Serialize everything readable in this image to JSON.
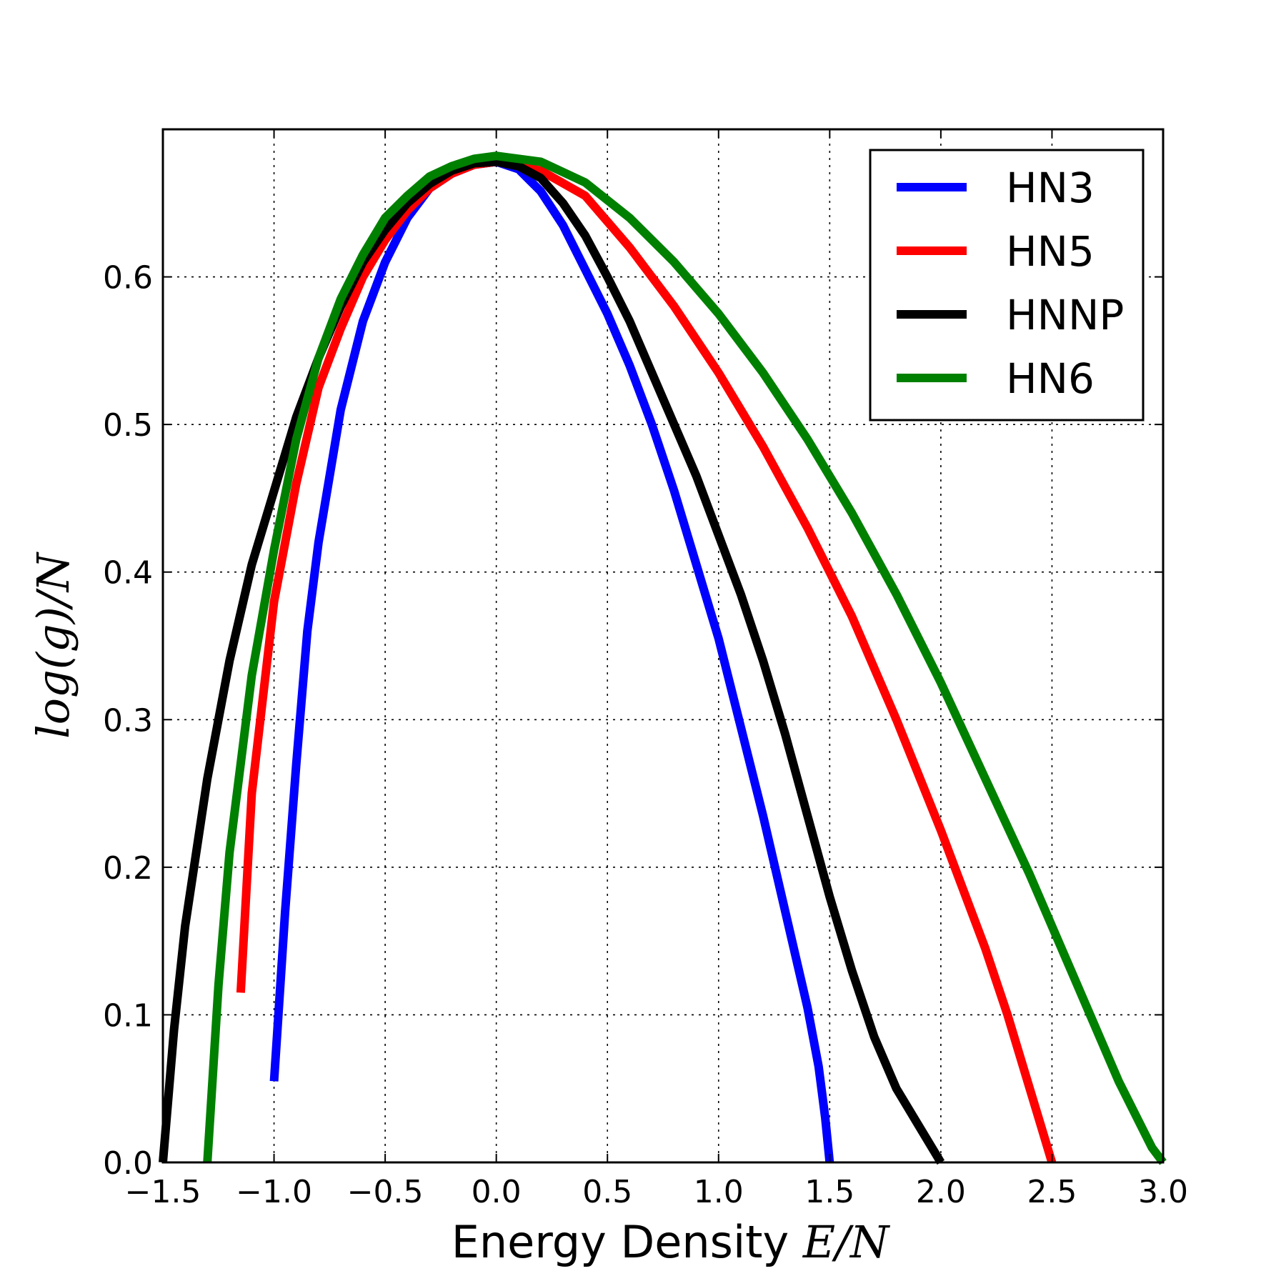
{
  "chart_data": {
    "type": "line",
    "title": "",
    "xlabel_text": "Energy Density ",
    "xlabel_math": "E/N",
    "ylabel_math": "log(g)/N",
    "xlim": [
      -1.5,
      3.0
    ],
    "ylim": [
      0.0,
      0.7
    ],
    "xticks": [
      -1.5,
      -1.0,
      -0.5,
      0.0,
      0.5,
      1.0,
      1.5,
      2.0,
      2.5,
      3.0
    ],
    "xtick_labels": [
      "−1.5",
      "−1.0",
      "−0.5",
      "0.0",
      "0.5",
      "1.0",
      "1.5",
      "2.0",
      "2.5",
      "3.0"
    ],
    "yticks": [
      0.0,
      0.1,
      0.2,
      0.3,
      0.4,
      0.5,
      0.6
    ],
    "ytick_labels": [
      "0.0",
      "0.1",
      "0.2",
      "0.3",
      "0.4",
      "0.5",
      "0.6"
    ],
    "grid": true,
    "legend_position": "top-right",
    "series": [
      {
        "name": "HN3",
        "color": "#0000ff",
        "points": [
          [
            -1.0,
            0.055
          ],
          [
            -0.95,
            0.17
          ],
          [
            -0.9,
            0.27
          ],
          [
            -0.85,
            0.36
          ],
          [
            -0.8,
            0.42
          ],
          [
            -0.7,
            0.51
          ],
          [
            -0.6,
            0.57
          ],
          [
            -0.5,
            0.61
          ],
          [
            -0.4,
            0.64
          ],
          [
            -0.3,
            0.66
          ],
          [
            -0.2,
            0.67
          ],
          [
            -0.1,
            0.676
          ],
          [
            0.0,
            0.678
          ],
          [
            0.1,
            0.673
          ],
          [
            0.2,
            0.658
          ],
          [
            0.3,
            0.635
          ],
          [
            0.4,
            0.605
          ],
          [
            0.5,
            0.575
          ],
          [
            0.6,
            0.54
          ],
          [
            0.7,
            0.5
          ],
          [
            0.8,
            0.455
          ],
          [
            0.9,
            0.405
          ],
          [
            1.0,
            0.355
          ],
          [
            1.1,
            0.295
          ],
          [
            1.2,
            0.235
          ],
          [
            1.3,
            0.17
          ],
          [
            1.4,
            0.105
          ],
          [
            1.45,
            0.065
          ],
          [
            1.48,
            0.03
          ],
          [
            1.5,
            0.0
          ]
        ]
      },
      {
        "name": "HN5",
        "color": "#ff0000",
        "points": [
          [
            -1.15,
            0.115
          ],
          [
            -1.1,
            0.25
          ],
          [
            -1.0,
            0.38
          ],
          [
            -0.9,
            0.46
          ],
          [
            -0.8,
            0.525
          ],
          [
            -0.7,
            0.565
          ],
          [
            -0.6,
            0.6
          ],
          [
            -0.5,
            0.625
          ],
          [
            -0.4,
            0.645
          ],
          [
            -0.3,
            0.66
          ],
          [
            -0.2,
            0.67
          ],
          [
            -0.1,
            0.676
          ],
          [
            0.0,
            0.678
          ],
          [
            0.2,
            0.672
          ],
          [
            0.4,
            0.655
          ],
          [
            0.6,
            0.62
          ],
          [
            0.8,
            0.58
          ],
          [
            1.0,
            0.535
          ],
          [
            1.2,
            0.485
          ],
          [
            1.4,
            0.43
          ],
          [
            1.6,
            0.37
          ],
          [
            1.8,
            0.3
          ],
          [
            2.0,
            0.225
          ],
          [
            2.2,
            0.145
          ],
          [
            2.3,
            0.1
          ],
          [
            2.4,
            0.05
          ],
          [
            2.45,
            0.025
          ],
          [
            2.5,
            0.0
          ]
        ]
      },
      {
        "name": "HNNP",
        "color": "#000000",
        "points": [
          [
            -1.5,
            0.0
          ],
          [
            -1.45,
            0.09
          ],
          [
            -1.4,
            0.16
          ],
          [
            -1.3,
            0.26
          ],
          [
            -1.2,
            0.34
          ],
          [
            -1.1,
            0.405
          ],
          [
            -1.0,
            0.455
          ],
          [
            -0.9,
            0.505
          ],
          [
            -0.8,
            0.545
          ],
          [
            -0.7,
            0.58
          ],
          [
            -0.6,
            0.61
          ],
          [
            -0.5,
            0.632
          ],
          [
            -0.4,
            0.65
          ],
          [
            -0.3,
            0.663
          ],
          [
            -0.2,
            0.672
          ],
          [
            -0.1,
            0.677
          ],
          [
            0.0,
            0.678
          ],
          [
            0.1,
            0.675
          ],
          [
            0.2,
            0.667
          ],
          [
            0.3,
            0.65
          ],
          [
            0.4,
            0.628
          ],
          [
            0.5,
            0.6
          ],
          [
            0.6,
            0.57
          ],
          [
            0.7,
            0.535
          ],
          [
            0.8,
            0.5
          ],
          [
            0.9,
            0.465
          ],
          [
            1.0,
            0.425
          ],
          [
            1.1,
            0.385
          ],
          [
            1.2,
            0.34
          ],
          [
            1.3,
            0.29
          ],
          [
            1.4,
            0.235
          ],
          [
            1.5,
            0.18
          ],
          [
            1.6,
            0.13
          ],
          [
            1.7,
            0.085
          ],
          [
            1.8,
            0.05
          ],
          [
            1.9,
            0.025
          ],
          [
            2.0,
            0.0
          ]
        ]
      },
      {
        "name": "HN6",
        "color": "#008000",
        "points": [
          [
            -1.3,
            0.0
          ],
          [
            -1.25,
            0.12
          ],
          [
            -1.2,
            0.21
          ],
          [
            -1.1,
            0.33
          ],
          [
            -1.0,
            0.415
          ],
          [
            -0.9,
            0.49
          ],
          [
            -0.8,
            0.545
          ],
          [
            -0.7,
            0.585
          ],
          [
            -0.6,
            0.615
          ],
          [
            -0.5,
            0.64
          ],
          [
            -0.4,
            0.655
          ],
          [
            -0.3,
            0.668
          ],
          [
            -0.2,
            0.675
          ],
          [
            -0.1,
            0.68
          ],
          [
            0.0,
            0.682
          ],
          [
            0.2,
            0.678
          ],
          [
            0.4,
            0.664
          ],
          [
            0.6,
            0.64
          ],
          [
            0.8,
            0.61
          ],
          [
            1.0,
            0.575
          ],
          [
            1.2,
            0.535
          ],
          [
            1.4,
            0.49
          ],
          [
            1.6,
            0.44
          ],
          [
            1.8,
            0.385
          ],
          [
            2.0,
            0.325
          ],
          [
            2.2,
            0.26
          ],
          [
            2.4,
            0.195
          ],
          [
            2.6,
            0.125
          ],
          [
            2.7,
            0.09
          ],
          [
            2.8,
            0.055
          ],
          [
            2.9,
            0.025
          ],
          [
            2.95,
            0.01
          ],
          [
            3.0,
            0.0
          ]
        ]
      }
    ]
  }
}
